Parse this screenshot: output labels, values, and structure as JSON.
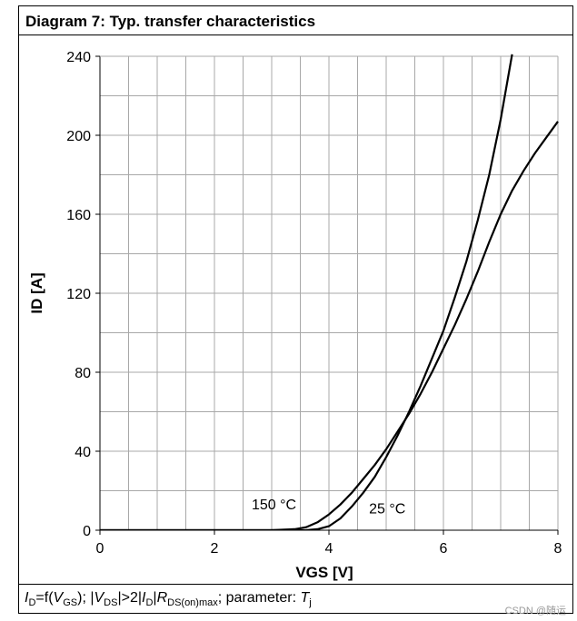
{
  "chart_data": {
    "type": "line",
    "title": "Diagram 7: Typ. transfer characteristics",
    "xlabel": "VGS [V]",
    "ylabel": "ID [A]",
    "xlim": [
      0,
      8
    ],
    "ylim": [
      0,
      240
    ],
    "xticks": [
      0,
      2,
      4,
      6,
      8
    ],
    "yticks": [
      0,
      40,
      80,
      120,
      160,
      200,
      240
    ],
    "grid": true,
    "series": [
      {
        "name": "150 °C",
        "x": [
          0,
          3.0,
          3.4,
          3.6,
          3.8,
          4.0,
          4.2,
          4.4,
          4.6,
          4.8,
          5.0,
          5.2,
          5.4,
          5.6,
          5.8,
          6.0,
          6.2,
          6.4,
          6.6,
          6.8,
          7.0,
          7.2,
          7.4,
          7.6,
          7.8,
          8.0
        ],
        "y": [
          0,
          0,
          0.5,
          1.5,
          4,
          8,
          13,
          19,
          26,
          33,
          41,
          50,
          59,
          69,
          80,
          92,
          104,
          117,
          131,
          146,
          160,
          172,
          182,
          191,
          199,
          207
        ]
      },
      {
        "name": "25 °C",
        "x": [
          0,
          3.6,
          3.8,
          4.0,
          4.2,
          4.4,
          4.6,
          4.8,
          5.0,
          5.2,
          5.4,
          5.6,
          5.8,
          6.0,
          6.2,
          6.4,
          6.6,
          6.8,
          7.0,
          7.2
        ],
        "y": [
          0,
          0,
          0.5,
          2,
          6,
          12,
          19,
          27,
          37,
          48,
          60,
          73,
          87,
          101,
          118,
          136,
          157,
          180,
          208,
          241
        ]
      }
    ],
    "annotations": [
      {
        "text": "150 °C",
        "x": 2.65,
        "y": 10.5
      },
      {
        "text": "25 °C",
        "x": 4.7,
        "y": 8.5
      }
    ]
  },
  "footer": {
    "i": "I",
    "d": "D",
    "eq": "=f(",
    "v": "V",
    "gs": "GS",
    "sep": "); |",
    "v2": "V",
    "ds": "DS",
    "gt": "|>2|",
    "i2": "I",
    "d2": "D",
    "bar": "|",
    "r": "R",
    "dson": "DS(on)max",
    "param": "; parameter: ",
    "t": "T",
    "j": "j"
  },
  "watermark": "CSDN @随运"
}
